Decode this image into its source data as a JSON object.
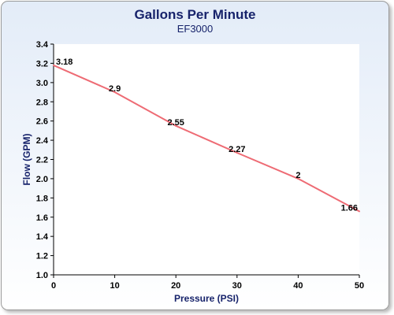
{
  "chart_data": {
    "type": "line",
    "title": "Gallons Per Minute",
    "subtitle": "EF3000",
    "xlabel": "Pressure (PSI)",
    "ylabel": "Flow (GPM)",
    "xlim": [
      0,
      50
    ],
    "ylim": [
      1.0,
      3.4
    ],
    "xticks": [
      0,
      10,
      20,
      30,
      40,
      50
    ],
    "yticks": [
      1.0,
      1.2,
      1.4,
      1.6,
      1.8,
      2.0,
      2.2,
      2.4,
      2.6,
      2.8,
      3.0,
      3.2,
      3.4
    ],
    "grid": false,
    "legend": "none",
    "line_color": "#ee6b74",
    "series": [
      {
        "x": [
          0,
          10,
          20,
          30,
          40,
          50
        ],
        "y": [
          3.18,
          2.9,
          2.55,
          2.27,
          2.0,
          1.66
        ],
        "labels": [
          "3.18",
          "2.9",
          "2.55",
          "2.27",
          "2",
          "1.66"
        ]
      }
    ]
  }
}
